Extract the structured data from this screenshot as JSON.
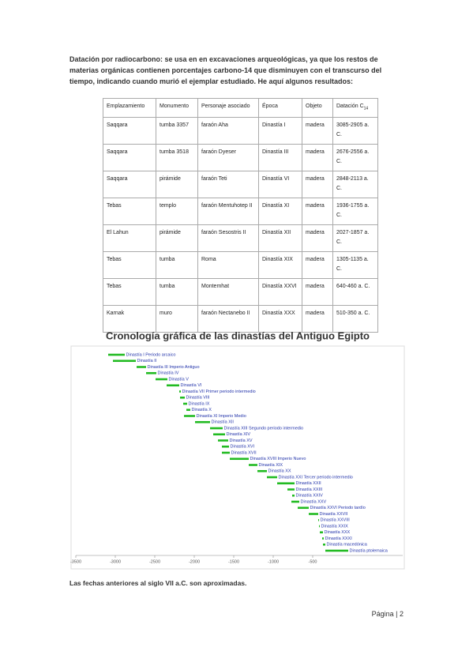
{
  "intro": "Datación por radiocarbono: se usa en en excavaciones arqueológicas, ya que los restos de materias orgánicas contienen porcentajes carbono-14 que disminuyen con el transcurso del tiempo, indicando cuando murió el ejemplar estudiado. He aquí algunos resultados:",
  "table": {
    "header": [
      "Emplazamiento",
      "Monumento",
      "Personaje asociado",
      "Época",
      "Objeto",
      {
        "text": "Datación C",
        "sub": "14"
      }
    ],
    "rows": [
      [
        "Saqqara",
        "tumba 3357",
        "faraón Aha",
        "Dinastía I",
        "madera",
        "3085-2905 a. C."
      ],
      [
        "Saqqara",
        "tumba 3518",
        "faraón Dyeser",
        "Dinastía III",
        "madera",
        "2676-2556 a. C."
      ],
      [
        "Saqqara",
        "pirámide",
        "faraón Teti",
        "Dinastía VI",
        "madera",
        "2848-2113 a. C."
      ],
      [
        "Tebas",
        "templo",
        "faraón Mentuhotep II",
        "Dinastía XI",
        "madera",
        "1936-1755 a. C."
      ],
      [
        "El Lahun",
        "pirámide",
        "faraón Sesostris II",
        "Dinastía XII",
        "madera",
        "2027-1857 a. C."
      ],
      [
        "Tebas",
        "tumba",
        "Roma",
        "Dinastía XIX",
        "madera",
        "1305-1135 a. C."
      ],
      [
        "Tebas",
        "tumba",
        "Montemhat",
        "Dinastía XXVI",
        "madera",
        "640-460 a. C."
      ],
      [
        "Karnak",
        "muro",
        "faraón Nectanebo II",
        "Dinastía XXX",
        "madera",
        "510-350 a. C."
      ]
    ]
  },
  "chart_data": {
    "type": "gantt",
    "title": "Cronología gráfica de las dinastías del Antiguo Egipto",
    "color": "#22bb22",
    "label_color": "#2233aa",
    "xlim": [
      -3500,
      600
    ],
    "xticks": [
      -3500,
      -3000,
      -2500,
      -2000,
      -1500,
      -1000,
      -500
    ],
    "tasks": [
      {
        "label": "Dinastía I Periodo arcaico",
        "start": -3090,
        "end": -2880
      },
      {
        "label": "Dinastía II",
        "start": -3030,
        "end": -2740
      },
      {
        "label": "Dinastía III Imperio Antiguo",
        "start": -2730,
        "end": -2610
      },
      {
        "label": "Dinastía IV",
        "start": -2610,
        "end": -2480
      },
      {
        "label": "Dinastía V",
        "start": -2490,
        "end": -2340
      },
      {
        "label": "Dinastía VI",
        "start": -2350,
        "end": -2190
      },
      {
        "label": "Dinastía VII Primer periodo intermedio",
        "start": -2190,
        "end": -2170
      },
      {
        "label": "Dinastía VIII",
        "start": -2180,
        "end": -2120
      },
      {
        "label": "Dinastía IX",
        "start": -2140,
        "end": -2090
      },
      {
        "label": "Dinastía X",
        "start": -2100,
        "end": -2050
      },
      {
        "label": "Dinastía XI Imperio Medio",
        "start": -2130,
        "end": -1990
      },
      {
        "label": "Dinastía XII",
        "start": -1990,
        "end": -1800
      },
      {
        "label": "Dinastía XIII Segundo periodo intermedio",
        "start": -1800,
        "end": -1640
      },
      {
        "label": "Dinastía XIV",
        "start": -1760,
        "end": -1610
      },
      {
        "label": "Dinastía XV",
        "start": -1700,
        "end": -1570
      },
      {
        "label": "Dinastía XVI",
        "start": -1650,
        "end": -1560
      },
      {
        "label": "Dinastía XVII",
        "start": -1650,
        "end": -1550
      },
      {
        "label": "Dinastía XVIII Imperio Nuevo",
        "start": -1550,
        "end": -1310
      },
      {
        "label": "Dinastía XIX",
        "start": -1310,
        "end": -1200
      },
      {
        "label": "Dinastía XX",
        "start": -1200,
        "end": -1080
      },
      {
        "label": "Dinastía XXI Tercer periodo intermedio",
        "start": -1080,
        "end": -950
      },
      {
        "label": "Dinastía XXII",
        "start": -950,
        "end": -730
      },
      {
        "label": "Dinastía XXIII",
        "start": -820,
        "end": -730
      },
      {
        "label": "Dinastía XXIV",
        "start": -760,
        "end": -730
      },
      {
        "label": "Dinastía XXV",
        "start": -770,
        "end": -670
      },
      {
        "label": "Dinastía XXVI Periodo tardío",
        "start": -690,
        "end": -550
      },
      {
        "label": "Dinastía XXVII",
        "start": -550,
        "end": -430
      },
      {
        "label": "Dinastía XXVIII",
        "start": -430,
        "end": -420
      },
      {
        "label": "Dinastía XXIX",
        "start": -420,
        "end": -410
      },
      {
        "label": "Dinastía XXX",
        "start": -410,
        "end": -370
      },
      {
        "label": "Dinastía XXXI",
        "start": -380,
        "end": -360
      },
      {
        "label": "Dinastía macedónica",
        "start": -370,
        "end": -340
      },
      {
        "label": "Dinastía ptolemaica",
        "start": -340,
        "end": -50
      }
    ]
  },
  "footnote": "Las fechas anteriores al siglo VII a.C. son aproximadas.",
  "footer": "Página | 2"
}
